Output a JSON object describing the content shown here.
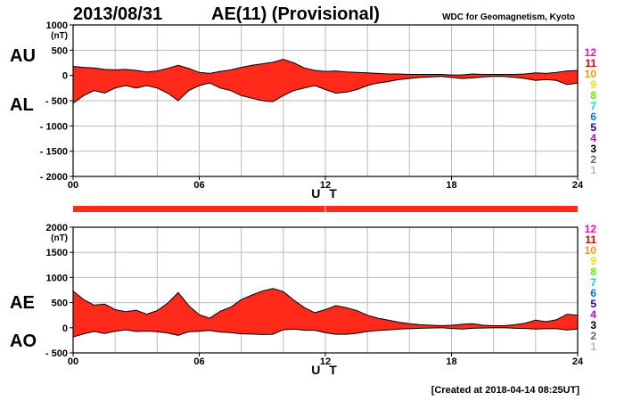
{
  "header": {
    "date": "2013/08/31",
    "title": "AE(11) (Provisional)",
    "source": "WDC for Geomagnetism, Kyoto"
  },
  "footer": {
    "created": "[Created at 2018-04-14 08:25UT]"
  },
  "colors": {
    "fill": "#ff2a1a",
    "outline": "#000000",
    "grid": "#bbbbbb"
  },
  "legend": {
    "items": [
      {
        "label": "12",
        "color": "#ff0aa0"
      },
      {
        "label": "11",
        "color": "#e00000"
      },
      {
        "label": "10",
        "color": "#ff9900"
      },
      {
        "label": "9",
        "color": "#f2e000"
      },
      {
        "label": "8",
        "color": "#66ee00"
      },
      {
        "label": "7",
        "color": "#00dddd"
      },
      {
        "label": "6",
        "color": "#0077ee"
      },
      {
        "label": "5",
        "color": "#2200bb"
      },
      {
        "label": "4",
        "color": "#cc00cc"
      },
      {
        "label": "3",
        "color": "#000000"
      },
      {
        "label": "2",
        "color": "#666666"
      },
      {
        "label": "1",
        "color": "#bbbbbb"
      }
    ]
  },
  "chart_data": [
    {
      "type": "area",
      "unit": "(nT)",
      "upper_label": "AU",
      "lower_label": "AL",
      "xlabel": "U T",
      "xlim": [
        0,
        24
      ],
      "xticks": [
        0,
        6,
        12,
        18,
        24
      ],
      "xtick_labels": [
        "00",
        "06",
        "12",
        "18",
        "24"
      ],
      "ylim": [
        -2000,
        1000
      ],
      "yticks": [
        1000,
        500,
        0,
        -500,
        -1000,
        -1500,
        -2000
      ],
      "ytick_labels": [
        "1000",
        "500",
        "0",
        "- 500",
        "- 1000",
        "- 1500",
        "- 2000"
      ],
      "grid": true,
      "x": [
        0,
        0.5,
        1,
        1.5,
        2,
        2.5,
        3,
        3.5,
        4,
        4.5,
        5,
        5.5,
        6,
        6.5,
        7,
        7.5,
        8,
        8.5,
        9,
        9.5,
        10,
        10.5,
        11,
        11.5,
        12,
        12.5,
        13,
        13.5,
        14,
        14.5,
        15,
        15.5,
        16,
        16.5,
        17,
        17.5,
        18,
        18.5,
        19,
        19.5,
        20,
        20.5,
        21,
        21.5,
        22,
        22.5,
        23,
        23.5,
        24
      ],
      "series": [
        {
          "name": "AU",
          "values": [
            180,
            160,
            150,
            120,
            110,
            120,
            100,
            70,
            90,
            140,
            200,
            140,
            60,
            40,
            80,
            110,
            160,
            200,
            230,
            260,
            320,
            250,
            150,
            100,
            80,
            90,
            70,
            60,
            50,
            40,
            30,
            30,
            20,
            20,
            20,
            20,
            10,
            10,
            30,
            20,
            20,
            20,
            20,
            30,
            50,
            40,
            60,
            90,
            100
          ]
        },
        {
          "name": "AL",
          "values": [
            -550,
            -400,
            -300,
            -350,
            -250,
            -200,
            -250,
            -200,
            -250,
            -350,
            -500,
            -300,
            -200,
            -150,
            -250,
            -300,
            -400,
            -450,
            -500,
            -520,
            -400,
            -300,
            -250,
            -200,
            -280,
            -350,
            -330,
            -280,
            -200,
            -150,
            -120,
            -80,
            -60,
            -40,
            -30,
            -20,
            -40,
            -60,
            -50,
            -30,
            -20,
            -20,
            -40,
            -60,
            -100,
            -80,
            -100,
            -180,
            -150
          ]
        }
      ]
    },
    {
      "type": "area",
      "unit": "(nT)",
      "upper_label": "AE",
      "lower_label": "AO",
      "xlabel": "U T",
      "xlim": [
        0,
        24
      ],
      "xticks": [
        0,
        6,
        12,
        18,
        24
      ],
      "xtick_labels": [
        "00",
        "06",
        "12",
        "18",
        "24"
      ],
      "ylim": [
        -500,
        2000
      ],
      "yticks": [
        2000,
        1500,
        1000,
        500,
        0,
        -500
      ],
      "ytick_labels": [
        "2000",
        "1500",
        "1000",
        "500",
        "0",
        "- 500"
      ],
      "grid": true,
      "x": [
        0,
        0.5,
        1,
        1.5,
        2,
        2.5,
        3,
        3.5,
        4,
        4.5,
        5,
        5.5,
        6,
        6.5,
        7,
        7.5,
        8,
        8.5,
        9,
        9.5,
        10,
        10.5,
        11,
        11.5,
        12,
        12.5,
        13,
        13.5,
        14,
        14.5,
        15,
        15.5,
        16,
        16.5,
        17,
        17.5,
        18,
        18.5,
        19,
        19.5,
        20,
        20.5,
        21,
        21.5,
        22,
        22.5,
        23,
        23.5,
        24
      ],
      "series": [
        {
          "name": "AE",
          "values": [
            730,
            560,
            450,
            470,
            360,
            320,
            350,
            270,
            340,
            490,
            700,
            440,
            260,
            190,
            330,
            410,
            560,
            650,
            730,
            780,
            720,
            550,
            400,
            300,
            360,
            440,
            400,
            340,
            250,
            190,
            150,
            110,
            80,
            60,
            50,
            40,
            50,
            70,
            80,
            50,
            40,
            40,
            60,
            90,
            150,
            120,
            160,
            270,
            250
          ]
        },
        {
          "name": "AO",
          "values": [
            -185,
            -120,
            -75,
            -115,
            -70,
            -40,
            -75,
            -65,
            -80,
            -105,
            -150,
            -80,
            -70,
            -55,
            -85,
            -95,
            -120,
            -125,
            -135,
            -130,
            -40,
            -25,
            -50,
            -50,
            -100,
            -130,
            -130,
            -110,
            -75,
            -55,
            -45,
            -25,
            -20,
            -10,
            -5,
            0,
            -15,
            -25,
            -10,
            -5,
            0,
            0,
            -10,
            -15,
            -25,
            -20,
            -20,
            -45,
            -25
          ]
        }
      ]
    }
  ]
}
